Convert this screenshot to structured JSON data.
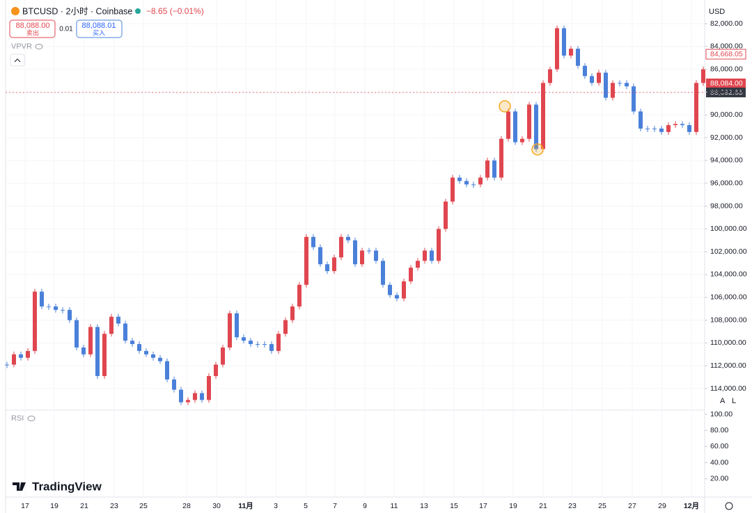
{
  "header": {
    "symbol": "BTCUSD · 2小时 · Coinbase",
    "change": "−8.65 (−0.01%)",
    "sell_price": "88,088.00",
    "sell_label": "卖出",
    "spread": "0.01",
    "buy_price": "88,088.01",
    "buy_label": "买入",
    "indicator": "VPVR",
    "currency": "USD",
    "scale_buttons": [
      "A",
      "L"
    ],
    "brand": "TradingView"
  },
  "chart_data": {
    "type": "candlestick",
    "values": [
      111900,
      111000,
      111300,
      110700,
      105500,
      106800,
      106800,
      107100,
      107100,
      108000,
      110400,
      111000,
      108600,
      112900,
      109200,
      107700,
      108300,
      109800,
      110100,
      110700,
      111000,
      111300,
      111600,
      113200,
      114100,
      115200,
      115000,
      114400,
      115000,
      112900,
      111900,
      110400,
      107400,
      109500,
      109800,
      110100,
      110100,
      110100,
      110700,
      109200,
      108000,
      106800,
      104900,
      100700,
      101600,
      103100,
      103700,
      102500,
      100700,
      101000,
      103100,
      101900,
      101900,
      102800,
      104900,
      105800,
      106100,
      104600,
      103400,
      102800,
      101900,
      102800,
      100000,
      97600,
      95500,
      95800,
      96100,
      96100,
      95500,
      94000,
      95500,
      92100,
      89700,
      92400,
      92100,
      89100,
      93000,
      87200,
      86000,
      82400,
      84800,
      84200,
      85700,
      86600,
      87200,
      86300,
      88500,
      87200,
      87200,
      87500,
      89700,
      91200,
      91200,
      91200,
      91500,
      90900,
      90800,
      90900,
      91500,
      87200,
      86000
    ],
    "ylim": [
      82000,
      114000
    ],
    "inverted": true,
    "yticks": [
      {
        "value": 82000,
        "label": "82,000.00"
      },
      {
        "value": 84000,
        "label": "84,000.00"
      },
      {
        "value": 86000,
        "label": "86,000.00"
      },
      {
        "value": 88000,
        "label": "88,000.00"
      },
      {
        "value": 90000,
        "label": "90,000.00"
      },
      {
        "value": 92000,
        "label": "92,000.00"
      },
      {
        "value": 94000,
        "label": "94,000.00"
      },
      {
        "value": 96000,
        "label": "96,000.00"
      },
      {
        "value": 98000,
        "label": "98,000.00"
      },
      {
        "value": 100000,
        "label": "100,000.00"
      },
      {
        "value": 102000,
        "label": "102,000.00"
      },
      {
        "value": 104000,
        "label": "104,000.00"
      },
      {
        "value": 106000,
        "label": "106,000.00"
      },
      {
        "value": 108000,
        "label": "108,000.00"
      },
      {
        "value": 110000,
        "label": "110,000.00"
      },
      {
        "value": 112000,
        "label": "112,000.00"
      },
      {
        "value": 114000,
        "label": "114,000.00"
      }
    ],
    "x_labels": [
      "17",
      "19",
      "21",
      "23",
      "25",
      "28",
      "30",
      "11月",
      "3",
      "5",
      "7",
      "9",
      "11",
      "13",
      "15",
      "17",
      "19",
      "21",
      "23",
      "25",
      "27",
      "29",
      "12月"
    ],
    "price_labels": [
      "84,668.05",
      "88,084.00",
      "88,092.65"
    ],
    "grid": true,
    "up_color": "#4a80d9",
    "down_color": "#e0464f"
  },
  "rsi": {
    "title": "RSI",
    "ylim": [
      0,
      100
    ],
    "yticks": [
      {
        "value": 100,
        "label": "100.00"
      },
      {
        "value": 80,
        "label": "80.00"
      },
      {
        "value": 60,
        "label": "60.00"
      },
      {
        "value": 40,
        "label": "40.00"
      },
      {
        "value": 20,
        "label": "20.00"
      }
    ]
  }
}
